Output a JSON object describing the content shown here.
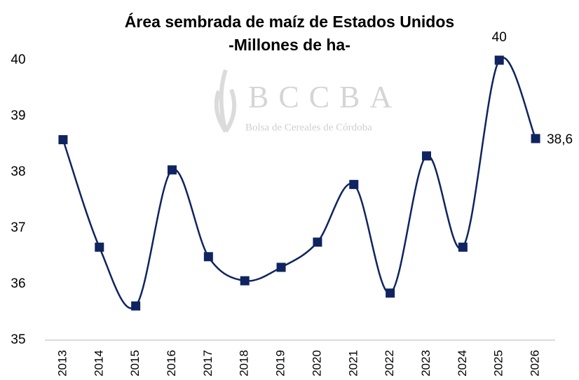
{
  "chart_data": {
    "type": "line",
    "title": "Área sembrada de maíz de Estados Unidos",
    "subtitle": "-Millones de ha-",
    "watermark": {
      "title": "BCCBA",
      "subtitle": "Bolsa de Cereales de Córdoba"
    },
    "categories": [
      "2013",
      "2014",
      "2015",
      "2016",
      "2017",
      "2018",
      "2019",
      "2020",
      "2021",
      "2022",
      "2023",
      "2024",
      "2025",
      "2026"
    ],
    "values": [
      38.58,
      36.66,
      35.61,
      38.04,
      36.49,
      36.06,
      36.3,
      36.75,
      37.78,
      35.84,
      38.29,
      36.66,
      40,
      38.6
    ],
    "value_labels": [
      null,
      null,
      null,
      null,
      null,
      null,
      null,
      null,
      null,
      null,
      null,
      null,
      "40",
      "38,6"
    ],
    "color": "#0f2460",
    "ylim": [
      35,
      40
    ],
    "yticks": [
      35,
      36,
      37,
      38,
      39,
      40
    ],
    "grid": false
  }
}
